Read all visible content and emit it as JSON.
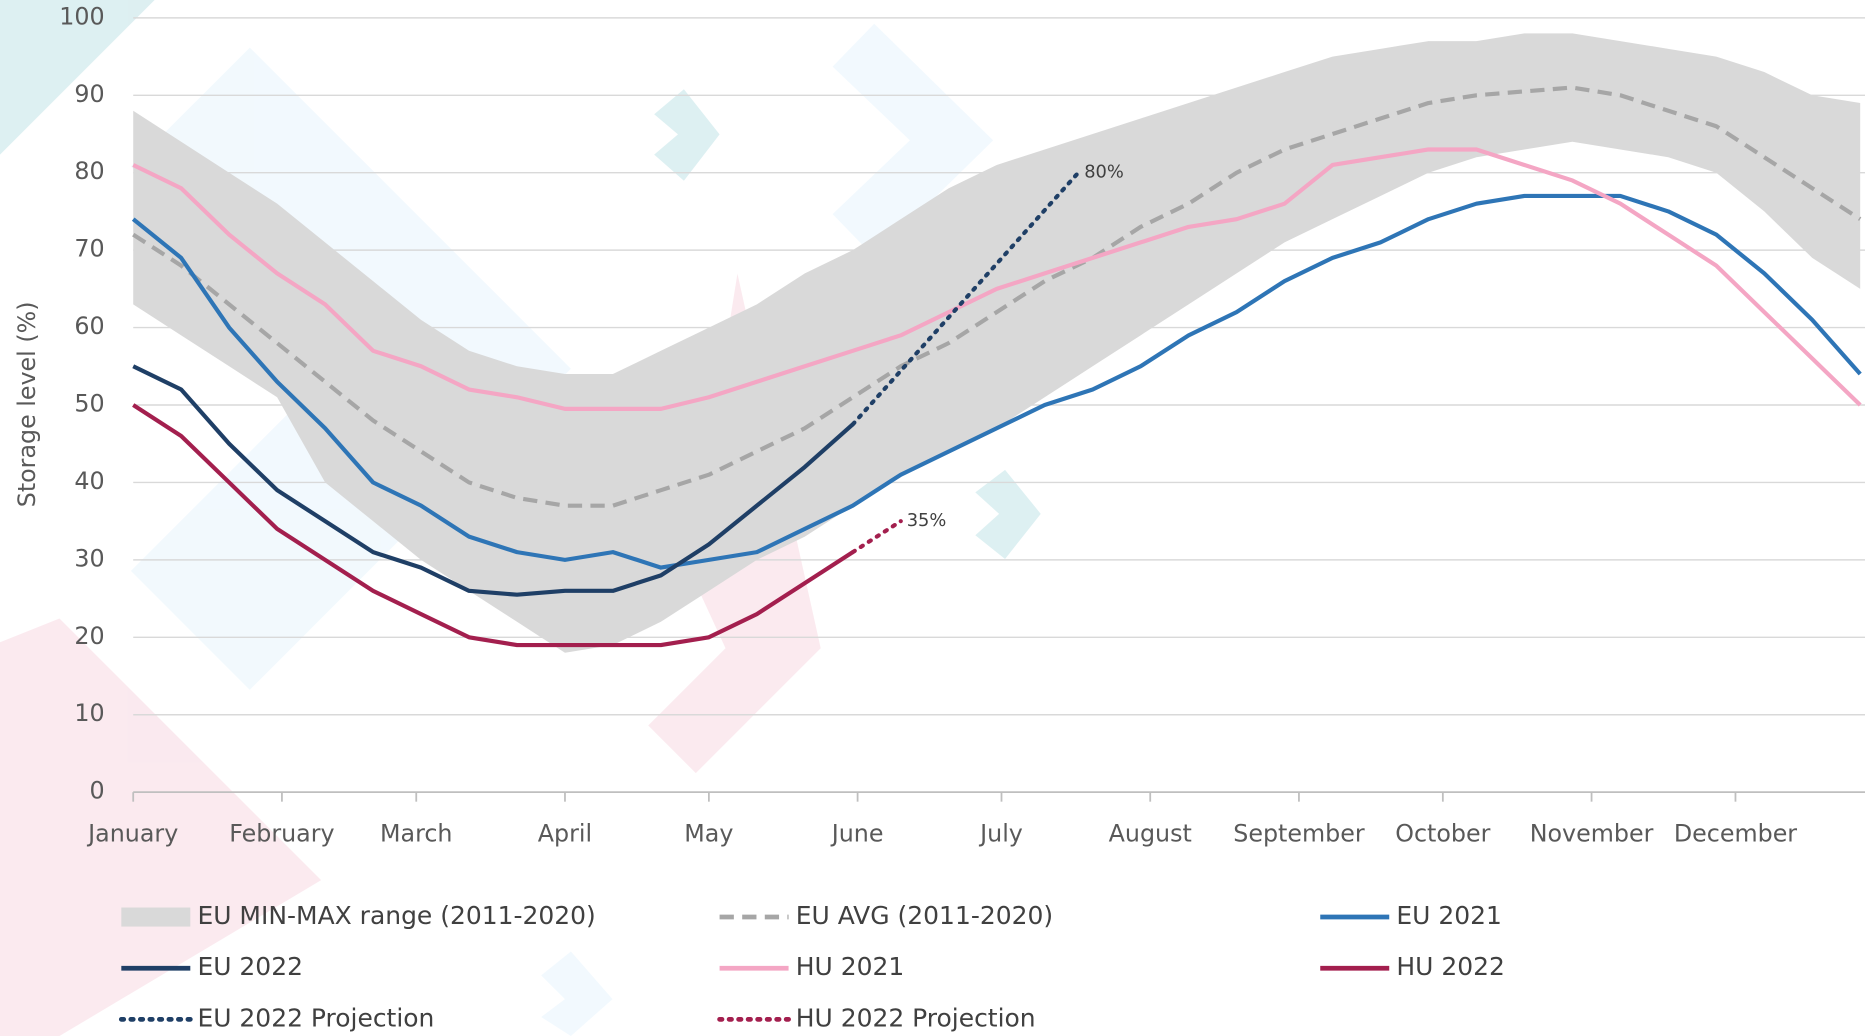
{
  "chart_data": {
    "type": "line",
    "y_label": "Storage level (%)",
    "xlim": [
      0,
      361
    ],
    "ylim": [
      0,
      100
    ],
    "yticks": [
      0,
      10,
      20,
      30,
      40,
      50,
      60,
      70,
      80,
      90,
      100
    ],
    "xticks": [
      {
        "value": 0,
        "label": "January"
      },
      {
        "value": 31,
        "label": "February"
      },
      {
        "value": 59,
        "label": "March"
      },
      {
        "value": 90,
        "label": "April"
      },
      {
        "value": 120,
        "label": "May"
      },
      {
        "value": 151,
        "label": "June"
      },
      {
        "value": 181,
        "label": "July"
      },
      {
        "value": 212,
        "label": "August"
      },
      {
        "value": 243,
        "label": "September"
      },
      {
        "value": 273,
        "label": "October"
      },
      {
        "value": 304,
        "label": "November"
      },
      {
        "value": 334,
        "label": "December"
      }
    ],
    "grid": true,
    "x": [
      0,
      10,
      20,
      30,
      40,
      50,
      60,
      70,
      80,
      90,
      100,
      110,
      120,
      130,
      140,
      150,
      160,
      170,
      180,
      190,
      200,
      210,
      220,
      230,
      240,
      250,
      260,
      270,
      280,
      290,
      300,
      310,
      320,
      330,
      340,
      350,
      360
    ],
    "series": [
      {
        "name": "EU MIN-MAX range (2011-2020)",
        "style": "band",
        "color": "#d9d9d9",
        "low": [
          63,
          59,
          55,
          51,
          40,
          35,
          30,
          26,
          22,
          18,
          19,
          22,
          26,
          30,
          33,
          37,
          41,
          44,
          47,
          51,
          55,
          59,
          63,
          67,
          71,
          74,
          77,
          80,
          82,
          83,
          84,
          83,
          82,
          80,
          75,
          69,
          65
        ],
        "high": [
          88,
          84,
          80,
          76,
          71,
          66,
          61,
          57,
          55,
          54,
          54,
          57,
          60,
          63,
          67,
          70,
          74,
          78,
          81,
          83,
          85,
          87,
          89,
          91,
          93,
          95,
          96,
          97,
          97,
          98,
          98,
          97,
          96,
          95,
          93,
          90,
          89
        ]
      },
      {
        "name": "EU AVG (2011-2020)",
        "style": "dashed",
        "color": "#a6a6a6",
        "values": [
          72,
          68,
          63,
          58,
          53,
          48,
          44,
          40,
          38,
          37,
          37,
          39,
          41,
          44,
          47,
          51,
          55,
          58,
          62,
          66,
          69,
          73,
          76,
          80,
          83,
          85,
          87,
          89,
          90,
          90.5,
          91,
          90,
          88,
          86,
          82,
          78,
          74
        ]
      },
      {
        "name": "EU 2021",
        "style": "solid",
        "color": "#2e75b6",
        "values": [
          74,
          69,
          60,
          53,
          47,
          40,
          37,
          33,
          31,
          30,
          31,
          29,
          30,
          31,
          34,
          37,
          41,
          44,
          47,
          50,
          52,
          55,
          59,
          62,
          66,
          69,
          71,
          74,
          76,
          77,
          77,
          77,
          75,
          72,
          67,
          61,
          54
        ]
      },
      {
        "name": "EU 2022",
        "style": "solid",
        "color": "#1f3f66",
        "values": [
          55,
          52,
          45,
          39,
          35,
          31,
          29,
          26,
          25.5,
          26,
          26,
          28,
          32,
          37,
          42,
          47.5,
          null,
          null,
          null,
          null,
          null,
          null,
          null,
          null,
          null,
          null,
          null,
          null,
          null,
          null,
          null,
          null,
          null,
          null,
          null,
          null,
          null
        ]
      },
      {
        "name": "HU 2021",
        "style": "solid",
        "color": "#f4a6c4",
        "values": [
          81,
          78,
          72,
          67,
          63,
          57,
          55,
          52,
          51,
          49.5,
          49.5,
          49.5,
          51,
          53,
          55,
          57,
          59,
          62,
          65,
          67,
          69,
          71,
          73,
          74,
          76,
          81,
          82,
          83,
          83,
          81,
          79,
          76,
          72,
          68,
          62,
          56,
          50
        ]
      },
      {
        "name": "HU 2022",
        "style": "solid",
        "color": "#a31f4e",
        "values": [
          50,
          46,
          40,
          34,
          30,
          26,
          23,
          20,
          19,
          19,
          19,
          19,
          20,
          23,
          27,
          31,
          null,
          null,
          null,
          null,
          null,
          null,
          null,
          null,
          null,
          null,
          null,
          null,
          null,
          null,
          null,
          null,
          null,
          null,
          null,
          null,
          null
        ]
      },
      {
        "name": "EU 2022 Projection",
        "style": "dotted",
        "color": "#1f3f66",
        "x": [
          150,
          197
        ],
        "values": [
          47.5,
          80
        ],
        "value_labels": [
          null,
          "80%"
        ]
      },
      {
        "name": "HU 2022 Projection",
        "style": "dotted",
        "color": "#a31f4e",
        "x": [
          150,
          160
        ],
        "values": [
          31,
          35
        ],
        "value_labels": [
          null,
          "35%"
        ]
      }
    ]
  }
}
